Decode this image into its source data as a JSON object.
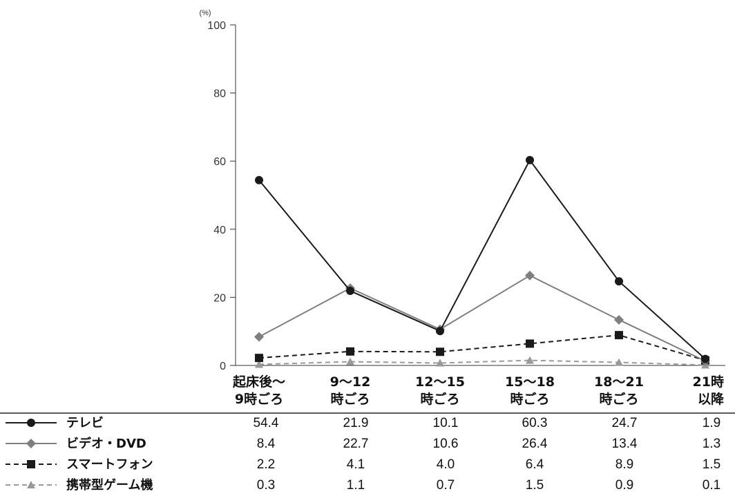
{
  "chart_data": {
    "type": "line",
    "unit": "(%)",
    "ylim": [
      0,
      100
    ],
    "yticks": [
      "0",
      "20",
      "40",
      "60",
      "80",
      "100"
    ],
    "categories": [
      [
        "起床後〜",
        "9時ごろ"
      ],
      [
        "9〜12",
        "時ごろ"
      ],
      [
        "12〜15",
        "時ごろ"
      ],
      [
        "15〜18",
        "時ごろ"
      ],
      [
        "18〜21",
        "時ごろ"
      ],
      [
        "21時",
        "以降"
      ]
    ],
    "series": [
      {
        "name": "テレビ",
        "values": [
          54.4,
          21.9,
          10.1,
          60.3,
          24.7,
          1.9
        ],
        "labels": [
          "54.4",
          "21.9",
          "10.1",
          "60.3",
          "24.7",
          "1.9"
        ],
        "color": "#1a1a1a",
        "marker": "circle",
        "dash": "solid"
      },
      {
        "name": "ビデオ・DVD",
        "values": [
          8.4,
          22.7,
          10.6,
          26.4,
          13.4,
          1.3
        ],
        "labels": [
          "8.4",
          "22.7",
          "10.6",
          "26.4",
          "13.4",
          "1.3"
        ],
        "color": "#7f7f7f",
        "marker": "diamond",
        "dash": "solid"
      },
      {
        "name": "スマートフォン",
        "values": [
          2.2,
          4.1,
          4.0,
          6.4,
          8.9,
          1.5
        ],
        "labels": [
          "2.2",
          "4.1",
          "4.0",
          "6.4",
          "8.9",
          "1.5"
        ],
        "color": "#1a1a1a",
        "marker": "square",
        "dash": "dashed"
      },
      {
        "name": "携帯型ゲーム機",
        "values": [
          0.3,
          1.1,
          0.7,
          1.5,
          0.9,
          0.1
        ],
        "labels": [
          "0.3",
          "1.1",
          "0.7",
          "1.5",
          "0.9",
          "0.1"
        ],
        "color": "#999999",
        "marker": "triangle",
        "dash": "dashed"
      }
    ],
    "grid": false,
    "legend_position": "table-below"
  }
}
